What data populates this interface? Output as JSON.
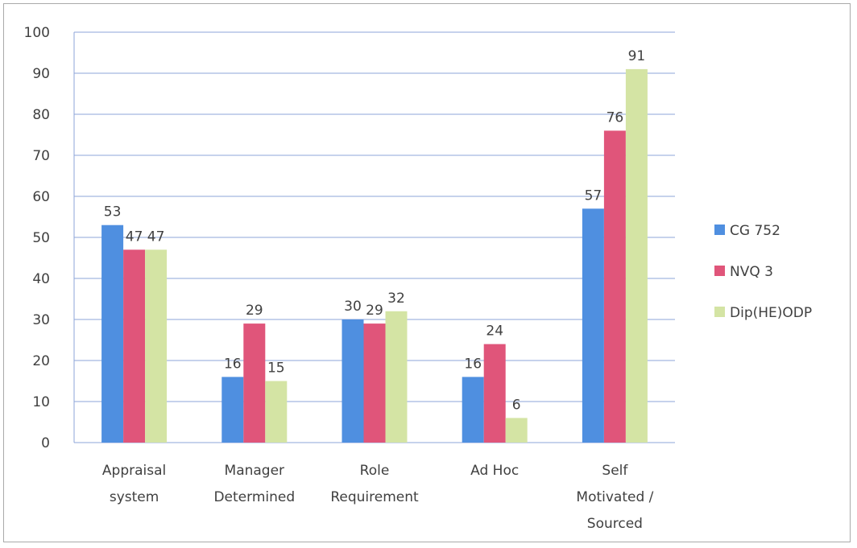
{
  "chart_data": {
    "type": "bar",
    "categories": [
      [
        "Appraisal",
        "system"
      ],
      [
        "Manager",
        "Determined"
      ],
      [
        "Role",
        "Requirement"
      ],
      [
        "Ad Hoc"
      ],
      [
        "Self",
        "Motivated /",
        "Sourced"
      ]
    ],
    "series": [
      {
        "name": "CG 752",
        "values": [
          53,
          16,
          30,
          16,
          57
        ],
        "color": "#4f8fe0"
      },
      {
        "name": "NVQ 3",
        "values": [
          47,
          29,
          29,
          24,
          76
        ],
        "color": "#e0557a"
      },
      {
        "name": "Dip(HE)ODP",
        "values": [
          47,
          15,
          32,
          6,
          91
        ],
        "color": "#d4e4a4"
      }
    ],
    "yticks": [
      0,
      10,
      20,
      30,
      40,
      50,
      60,
      70,
      80,
      90,
      100
    ],
    "ylim": [
      0,
      100
    ],
    "grid": true,
    "legend": "right"
  }
}
